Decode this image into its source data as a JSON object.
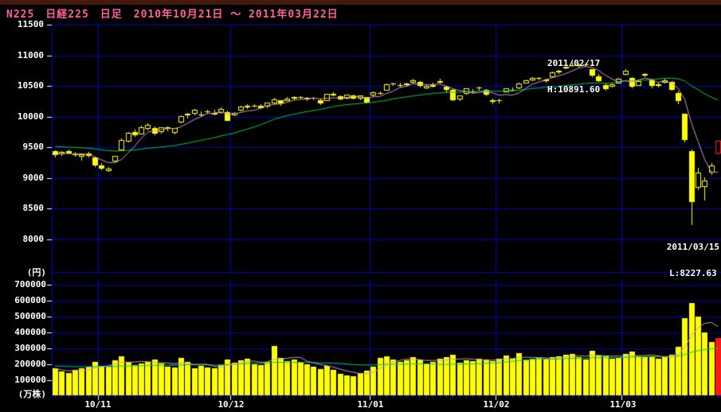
{
  "header": {
    "title": "N225　日経225　日足　2010年10月21日 ～ 2011年03月22日"
  },
  "price_panel": {
    "unit_label": "(円)",
    "axis_labels": [
      "11500",
      "11000",
      "10500",
      "10000",
      "9500",
      "9000",
      "8500",
      "8000"
    ],
    "annotations": {
      "high": {
        "date": "2011/02/17",
        "label": "H:10891.60"
      },
      "low": {
        "date": "2011/03/15",
        "label": "L:8227.63"
      }
    }
  },
  "volume_panel": {
    "unit_label": "(万株)",
    "axis_labels": [
      "700000",
      "600000",
      "500000",
      "400000",
      "300000",
      "200000",
      "100000"
    ]
  },
  "x_axis": {
    "month_labels": [
      {
        "label": "10/11",
        "after_index": 6
      },
      {
        "label": "10/12",
        "after_index": 26
      },
      {
        "label": "11/01",
        "after_index": 47
      },
      {
        "label": "11/02",
        "after_index": 66
      },
      {
        "label": "11/03",
        "after_index": 85
      }
    ]
  },
  "colors": {
    "background": "#000000",
    "grid": "#0000c8",
    "candle": "#ffff00",
    "candle_last": "#ff1a1a",
    "volume_bar": "#ffff00",
    "volume_bar_last": "#ff1a1a",
    "ma_short": "#cc99cc",
    "ma_long": "#00cc44",
    "axis_text": "#ffffff",
    "title_text": "#ff5f9e",
    "titlebar_strip": "#44190f",
    "day_tick": "#3a3a6e",
    "month_tick": "#ffffff"
  },
  "chart_data": {
    "type": "candlestick_with_volume",
    "title": "N225 日経225 日足 2010年10月21日～2011年03月22日",
    "price_gridlines": [
      11500,
      11000,
      10500,
      10000,
      9500,
      9000,
      8500,
      8000
    ],
    "volume_gridlines": [
      700000,
      600000,
      500000,
      400000,
      300000,
      200000,
      100000
    ],
    "price_axis_visible_range": [
      7460,
      11500
    ],
    "volume_axis_range": [
      0,
      730000
    ],
    "high_marker": {
      "date": "2011/02/17",
      "value": 10891.6
    },
    "low_marker": {
      "date": "2011/03/15",
      "value": 8227.63
    },
    "ma_short_window": 5,
    "ma_long_window": 25,
    "ma_long_left_value": 9519,
    "vol_ma_long_left_value": 190000,
    "columns": [
      "date",
      "open",
      "high",
      "low",
      "close",
      "volume_10kshares"
    ],
    "candles": [
      [
        "10/21",
        9435,
        9452,
        9335,
        9376,
        175000
      ],
      [
        "10/22",
        9392,
        9439,
        9360,
        9426,
        155000
      ],
      [
        "10/25",
        9442,
        9462,
        9389,
        9401,
        145000
      ],
      [
        "10/26",
        9390,
        9428,
        9345,
        9377,
        165000
      ],
      [
        "10/27",
        9345,
        9397,
        9288,
        9387,
        175000
      ],
      [
        "10/28",
        9403,
        9428,
        9337,
        9366,
        185000
      ],
      [
        "10/29",
        9340,
        9348,
        9182,
        9202,
        215000
      ],
      [
        "11/01",
        9202,
        9242,
        9123,
        9154,
        190000
      ],
      [
        "11/02",
        9111,
        9186,
        9100,
        9159,
        185000
      ],
      [
        "11/04",
        9270,
        9364,
        9256,
        9358,
        225000
      ],
      [
        "11/05",
        9453,
        9640,
        9448,
        9626,
        250000
      ],
      [
        "11/08",
        9591,
        9745,
        9586,
        9732,
        215000
      ],
      [
        "11/09",
        9750,
        9789,
        9672,
        9694,
        195000
      ],
      [
        "11/10",
        9717,
        9857,
        9707,
        9830,
        205000
      ],
      [
        "11/11",
        9796,
        9888,
        9776,
        9861,
        215000
      ],
      [
        "11/12",
        9821,
        9838,
        9704,
        9725,
        230000
      ],
      [
        "11/15",
        9750,
        9833,
        9728,
        9827,
        205000
      ],
      [
        "11/16",
        9824,
        9846,
        9765,
        9797,
        185000
      ],
      [
        "11/17",
        9741,
        9815,
        9714,
        9811,
        180000
      ],
      [
        "11/18",
        9905,
        10021,
        9896,
        10014,
        240000
      ],
      [
        "11/19",
        10050,
        10055,
        9974,
        10022,
        215000
      ],
      [
        "11/22",
        10042,
        10131,
        10022,
        10116,
        175000
      ],
      [
        "11/24",
        10028,
        10089,
        10011,
        10030,
        190000
      ],
      [
        "11/25",
        10086,
        10119,
        10051,
        10079,
        180000
      ],
      [
        "11/26",
        10066,
        10109,
        10027,
        10040,
        175000
      ],
      [
        "11/29",
        10057,
        10150,
        10047,
        10126,
        195000
      ],
      [
        "11/30",
        10076,
        10094,
        9936,
        9937,
        230000
      ],
      [
        "12/01",
        10017,
        10072,
        10003,
        10062,
        210000
      ],
      [
        "12/02",
        10102,
        10174,
        10089,
        10168,
        225000
      ],
      [
        "12/03",
        10158,
        10200,
        10130,
        10178,
        235000
      ],
      [
        "12/06",
        10176,
        10204,
        10148,
        10168,
        200000
      ],
      [
        "12/07",
        10175,
        10198,
        10126,
        10141,
        195000
      ],
      [
        "12/08",
        10163,
        10235,
        10143,
        10232,
        215000
      ],
      [
        "12/09",
        10221,
        10302,
        10189,
        10286,
        315000
      ],
      [
        "12/10",
        10263,
        10273,
        10184,
        10212,
        240000
      ],
      [
        "12/13",
        10262,
        10319,
        10256,
        10294,
        220000
      ],
      [
        "12/14",
        10293,
        10332,
        10270,
        10316,
        230000
      ],
      [
        "12/15",
        10317,
        10338,
        10287,
        10309,
        210000
      ],
      [
        "12/16",
        10286,
        10316,
        10262,
        10303,
        200000
      ],
      [
        "12/17",
        10295,
        10323,
        10273,
        10304,
        185000
      ],
      [
        "12/20",
        10272,
        10293,
        10192,
        10217,
        170000
      ],
      [
        "12/21",
        10262,
        10375,
        10261,
        10371,
        190000
      ],
      [
        "12/22",
        10368,
        10393,
        10337,
        10347,
        165000
      ],
      [
        "12/24",
        10328,
        10347,
        10273,
        10280,
        140000
      ],
      [
        "12/27",
        10292,
        10365,
        10282,
        10355,
        130000
      ],
      [
        "12/28",
        10345,
        10365,
        10282,
        10293,
        125000
      ],
      [
        "12/29",
        10294,
        10348,
        10274,
        10344,
        145000
      ],
      [
        "12/30",
        10318,
        10325,
        10219,
        10229,
        160000
      ],
      [
        "01/04",
        10352,
        10409,
        10324,
        10399,
        185000
      ],
      [
        "01/05",
        10384,
        10416,
        10357,
        10380,
        240000
      ],
      [
        "01/06",
        10428,
        10537,
        10420,
        10530,
        250000
      ],
      [
        "01/07",
        10523,
        10560,
        10500,
        10541,
        230000
      ],
      [
        "01/11",
        10497,
        10548,
        10477,
        10511,
        215000
      ],
      [
        "01/12",
        10539,
        10549,
        10483,
        10512,
        225000
      ],
      [
        "01/13",
        10551,
        10620,
        10539,
        10590,
        245000
      ],
      [
        "01/14",
        10564,
        10582,
        10475,
        10499,
        230000
      ],
      [
        "01/17",
        10467,
        10533,
        10448,
        10503,
        205000
      ],
      [
        "01/18",
        10488,
        10548,
        10471,
        10518,
        215000
      ],
      [
        "01/19",
        10582,
        10620,
        10542,
        10557,
        235000
      ],
      [
        "01/20",
        10488,
        10507,
        10391,
        10437,
        245000
      ],
      [
        "01/21",
        10441,
        10451,
        10251,
        10274,
        260000
      ],
      [
        "01/24",
        10280,
        10347,
        10256,
        10346,
        210000
      ],
      [
        "01/25",
        10374,
        10468,
        10361,
        10464,
        225000
      ],
      [
        "01/26",
        10412,
        10447,
        10378,
        10402,
        220000
      ],
      [
        "01/27",
        10459,
        10486,
        10421,
        10478,
        235000
      ],
      [
        "01/28",
        10436,
        10446,
        10336,
        10360,
        230000
      ],
      [
        "01/31",
        10273,
        10291,
        10205,
        10237,
        220000
      ],
      [
        "02/01",
        10269,
        10288,
        10217,
        10274,
        235000
      ],
      [
        "02/02",
        10399,
        10464,
        10392,
        10457,
        255000
      ],
      [
        "02/03",
        10431,
        10472,
        10408,
        10431,
        235000
      ],
      [
        "02/04",
        10459,
        10550,
        10453,
        10543,
        270000
      ],
      [
        "02/07",
        10545,
        10600,
        10535,
        10592,
        225000
      ],
      [
        "02/08",
        10590,
        10646,
        10578,
        10635,
        235000
      ],
      [
        "02/09",
        10628,
        10650,
        10591,
        10617,
        240000
      ],
      [
        "02/10",
        10575,
        10616,
        10557,
        10605,
        235000
      ],
      [
        "02/14",
        10649,
        10734,
        10635,
        10725,
        245000
      ],
      [
        "02/15",
        10717,
        10755,
        10696,
        10746,
        250000
      ],
      [
        "02/16",
        10787,
        10815,
        10769,
        10808,
        260000
      ],
      [
        "02/17",
        10821,
        10891.6,
        10810,
        10836,
        265000
      ],
      [
        "02/18",
        10837,
        10864,
        10805,
        10842,
        245000
      ],
      [
        "02/21",
        10855,
        10881,
        10836,
        10857,
        230000
      ],
      [
        "02/22",
        10772,
        10779,
        10641,
        10664,
        285000
      ],
      [
        "02/23",
        10660,
        10696,
        10564,
        10579,
        255000
      ],
      [
        "02/24",
        10520,
        10553,
        10429,
        10452,
        250000
      ],
      [
        "02/25",
        10493,
        10546,
        10475,
        10526,
        235000
      ],
      [
        "02/28",
        10547,
        10633,
        10546,
        10624,
        240000
      ],
      [
        "03/01",
        10684,
        10768,
        10669,
        10754,
        265000
      ],
      [
        "03/02",
        10629,
        10639,
        10469,
        10492,
        280000
      ],
      [
        "03/03",
        10506,
        10591,
        10497,
        10586,
        250000
      ],
      [
        "03/04",
        10672,
        10710,
        10649,
        10693,
        245000
      ],
      [
        "03/07",
        10599,
        10615,
        10468,
        10505,
        250000
      ],
      [
        "03/08",
        10506,
        10560,
        10478,
        10525,
        235000
      ],
      [
        "03/09",
        10553,
        10617,
        10546,
        10589,
        245000
      ],
      [
        "03/10",
        10563,
        10576,
        10423,
        10434,
        260000
      ],
      [
        "03/11",
        10389,
        10412,
        10208,
        10254,
        310000
      ],
      [
        "03/14",
        10044,
        10049,
        9578,
        9620,
        490000
      ],
      [
        "03/15",
        9441,
        9465,
        8227.63,
        8605,
        585000
      ],
      [
        "03/16",
        8846,
        9163,
        8801,
        9093,
        500000
      ],
      [
        "03/17",
        8852,
        9016,
        8639,
        8962,
        400000
      ],
      [
        "03/18",
        9093,
        9238,
        9056,
        9206,
        340000
      ],
      [
        "03/22",
        9405,
        9625,
        9391,
        9608,
        365000
      ]
    ]
  }
}
